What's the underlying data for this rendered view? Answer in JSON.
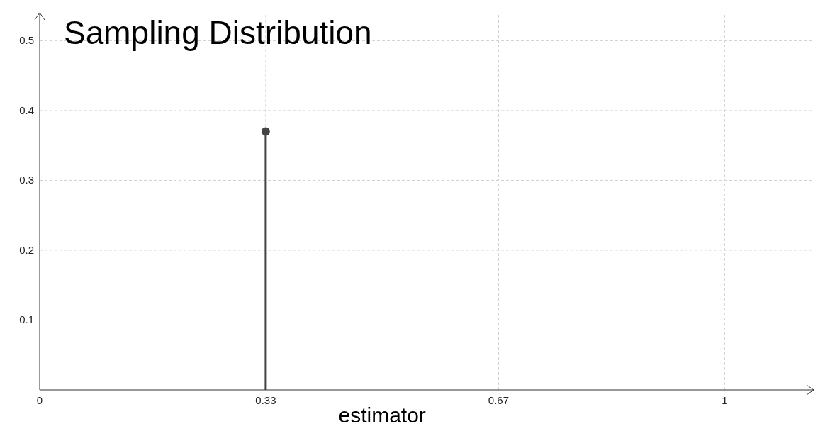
{
  "chart_data": {
    "type": "lollipop",
    "title": "Sampling Distribution",
    "xlabel": "estimator",
    "x": [
      0.33
    ],
    "series": [
      {
        "color": "#444444",
        "values": [
          0.37
        ]
      }
    ],
    "xlim": [
      0,
      1.13
    ],
    "ylim": [
      0,
      0.54
    ],
    "xticks": [
      0,
      0.33,
      0.67,
      1
    ],
    "yticks": [
      0.1,
      0.2,
      0.3,
      0.4,
      0.5
    ],
    "grid": true,
    "marker": "circle"
  }
}
